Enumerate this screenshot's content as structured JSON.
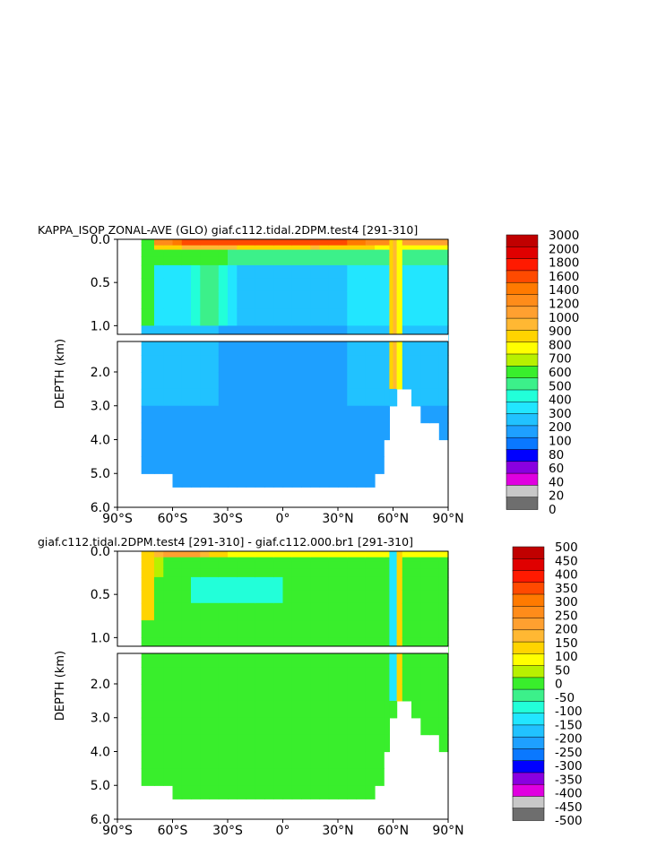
{
  "colors": {
    "top_bins": [
      "#ffffff",
      "#6e6e6e",
      "#c8c8c8",
      "#e000e0",
      "#8a00e0",
      "#0000ff",
      "#0a78ff",
      "#1ea0ff",
      "#21c2ff",
      "#22e6ff",
      "#22ffd9",
      "#3cf08a",
      "#39ee2c",
      "#b8f000",
      "#ffff00",
      "#ffd400",
      "#ffb833",
      "#ffa030",
      "#ff8c1a",
      "#ff7a00",
      "#ff4a00",
      "#ff1a00",
      "#e00000",
      "#c00000"
    ],
    "bottom_bins": [
      "#6e6e6e",
      "#c8c8c8",
      "#e000e0",
      "#8a00e0",
      "#0000ff",
      "#0a78ff",
      "#1ea0ff",
      "#21c2ff",
      "#22e6ff",
      "#22ffd9",
      "#3cf08a",
      "#39ee2c",
      "#b8f000",
      "#ffff00",
      "#ffd400",
      "#ffb833",
      "#ffa030",
      "#ff8c1a",
      "#ff7a00",
      "#ff4a00",
      "#ff1a00",
      "#e00000",
      "#c00000"
    ]
  },
  "chart_data": [
    {
      "type": "heatmap",
      "title": "KAPPA_ISOP ZONAL-AVE (GLO) giaf.c112.tidal.2DPM.test4  [291-310]",
      "ylabel": "DEPTH (km)",
      "x_ticks": [
        "90°S",
        "60°S",
        "30°S",
        "0°",
        "30°N",
        "60°N",
        "90°N"
      ],
      "y_ticks_upper": [
        "0.0",
        "0.5",
        "1.0"
      ],
      "y_ticks_lower": [
        "2.0",
        "3.0",
        "4.0",
        "5.0",
        "6.0"
      ],
      "xlim": [
        -90,
        90
      ],
      "ylim_upper_km": [
        0,
        1.1
      ],
      "ylim_lower_km": [
        1.1,
        6.0
      ],
      "colorbar_labels": [
        "3000",
        "2000",
        "1800",
        "1600",
        "1400",
        "1200",
        "1000",
        "900",
        "800",
        "700",
        "600",
        "500",
        "400",
        "300",
        "200",
        "100",
        "80",
        "60",
        "40",
        "20",
        "0"
      ],
      "colorbar_colors": [
        "#c00000",
        "#e00000",
        "#ff1a00",
        "#ff4a00",
        "#ff7a00",
        "#ff8c1a",
        "#ffa030",
        "#ffb833",
        "#ffd400",
        "#ffff00",
        "#b8f000",
        "#39ee2c",
        "#3cf08a",
        "#22ffd9",
        "#22e6ff",
        "#21c2ff",
        "#1ea0ff",
        "#0a78ff",
        "#0000ff",
        "#8a00e0",
        "#e000e0",
        "#c8c8c8",
        "#6e6e6e"
      ],
      "lat": [
        -77,
        -70,
        -65,
        -60,
        -55,
        -50,
        -45,
        -40,
        -35,
        -30,
        -25,
        -20,
        -15,
        -10,
        -5,
        0,
        5,
        10,
        15,
        20,
        25,
        30,
        35,
        40,
        45,
        50,
        55,
        58,
        60,
        62,
        65,
        70,
        75,
        80,
        85,
        90
      ],
      "depth_km": [
        0.0,
        0.03,
        0.07,
        0.12,
        0.2,
        0.3,
        0.45,
        0.6,
        0.8,
        1.0,
        1.2,
        1.5,
        2.0,
        2.5,
        3.0,
        3.5,
        4.0,
        4.5,
        5.0,
        5.4,
        6.0
      ],
      "bottom_depth_km": [
        5.0,
        5.1,
        5.15,
        5.25,
        5.32,
        5.35,
        5.38,
        5.38,
        5.38,
        5.38,
        5.38,
        5.38,
        5.38,
        5.38,
        5.38,
        5.38,
        5.38,
        5.38,
        5.38,
        5.38,
        5.38,
        5.38,
        5.38,
        5.38,
        5.38,
        5.38,
        4.8,
        3.8,
        3.0,
        2.8,
        2.7,
        3.1,
        3.3,
        3.7,
        4.0,
        4.1
      ]
    },
    {
      "type": "heatmap",
      "title": "giaf.c112.tidal.2DPM.test4 [291-310] - giaf.c112.000.br1 [291-310]",
      "ylabel": "DEPTH (km)",
      "x_ticks": [
        "90°S",
        "60°S",
        "30°S",
        "0°",
        "30°N",
        "60°N",
        "90°N"
      ],
      "y_ticks_upper": [
        "0.0",
        "0.5",
        "1.0"
      ],
      "y_ticks_lower": [
        "2.0",
        "3.0",
        "4.0",
        "5.0",
        "6.0"
      ],
      "xlim": [
        -90,
        90
      ],
      "ylim_upper_km": [
        0,
        1.1
      ],
      "ylim_lower_km": [
        1.1,
        6.0
      ],
      "colorbar_labels": [
        "500",
        "450",
        "400",
        "350",
        "300",
        "250",
        "200",
        "150",
        "100",
        "50",
        "0",
        "-50",
        "-100",
        "-150",
        "-200",
        "-250",
        "-300",
        "-350",
        "-400",
        "-450",
        "-500"
      ],
      "colorbar_colors": [
        "#c00000",
        "#e00000",
        "#ff1a00",
        "#ff4a00",
        "#ff7a00",
        "#ff8c1a",
        "#ffa030",
        "#ffb833",
        "#ffd400",
        "#ffff00",
        "#b8f000",
        "#39ee2c",
        "#3cf08a",
        "#22ffd9",
        "#22e6ff",
        "#21c2ff",
        "#1ea0ff",
        "#0a78ff",
        "#0000ff",
        "#8a00e0",
        "#e000e0",
        "#c8c8c8",
        "#6e6e6e"
      ]
    }
  ]
}
